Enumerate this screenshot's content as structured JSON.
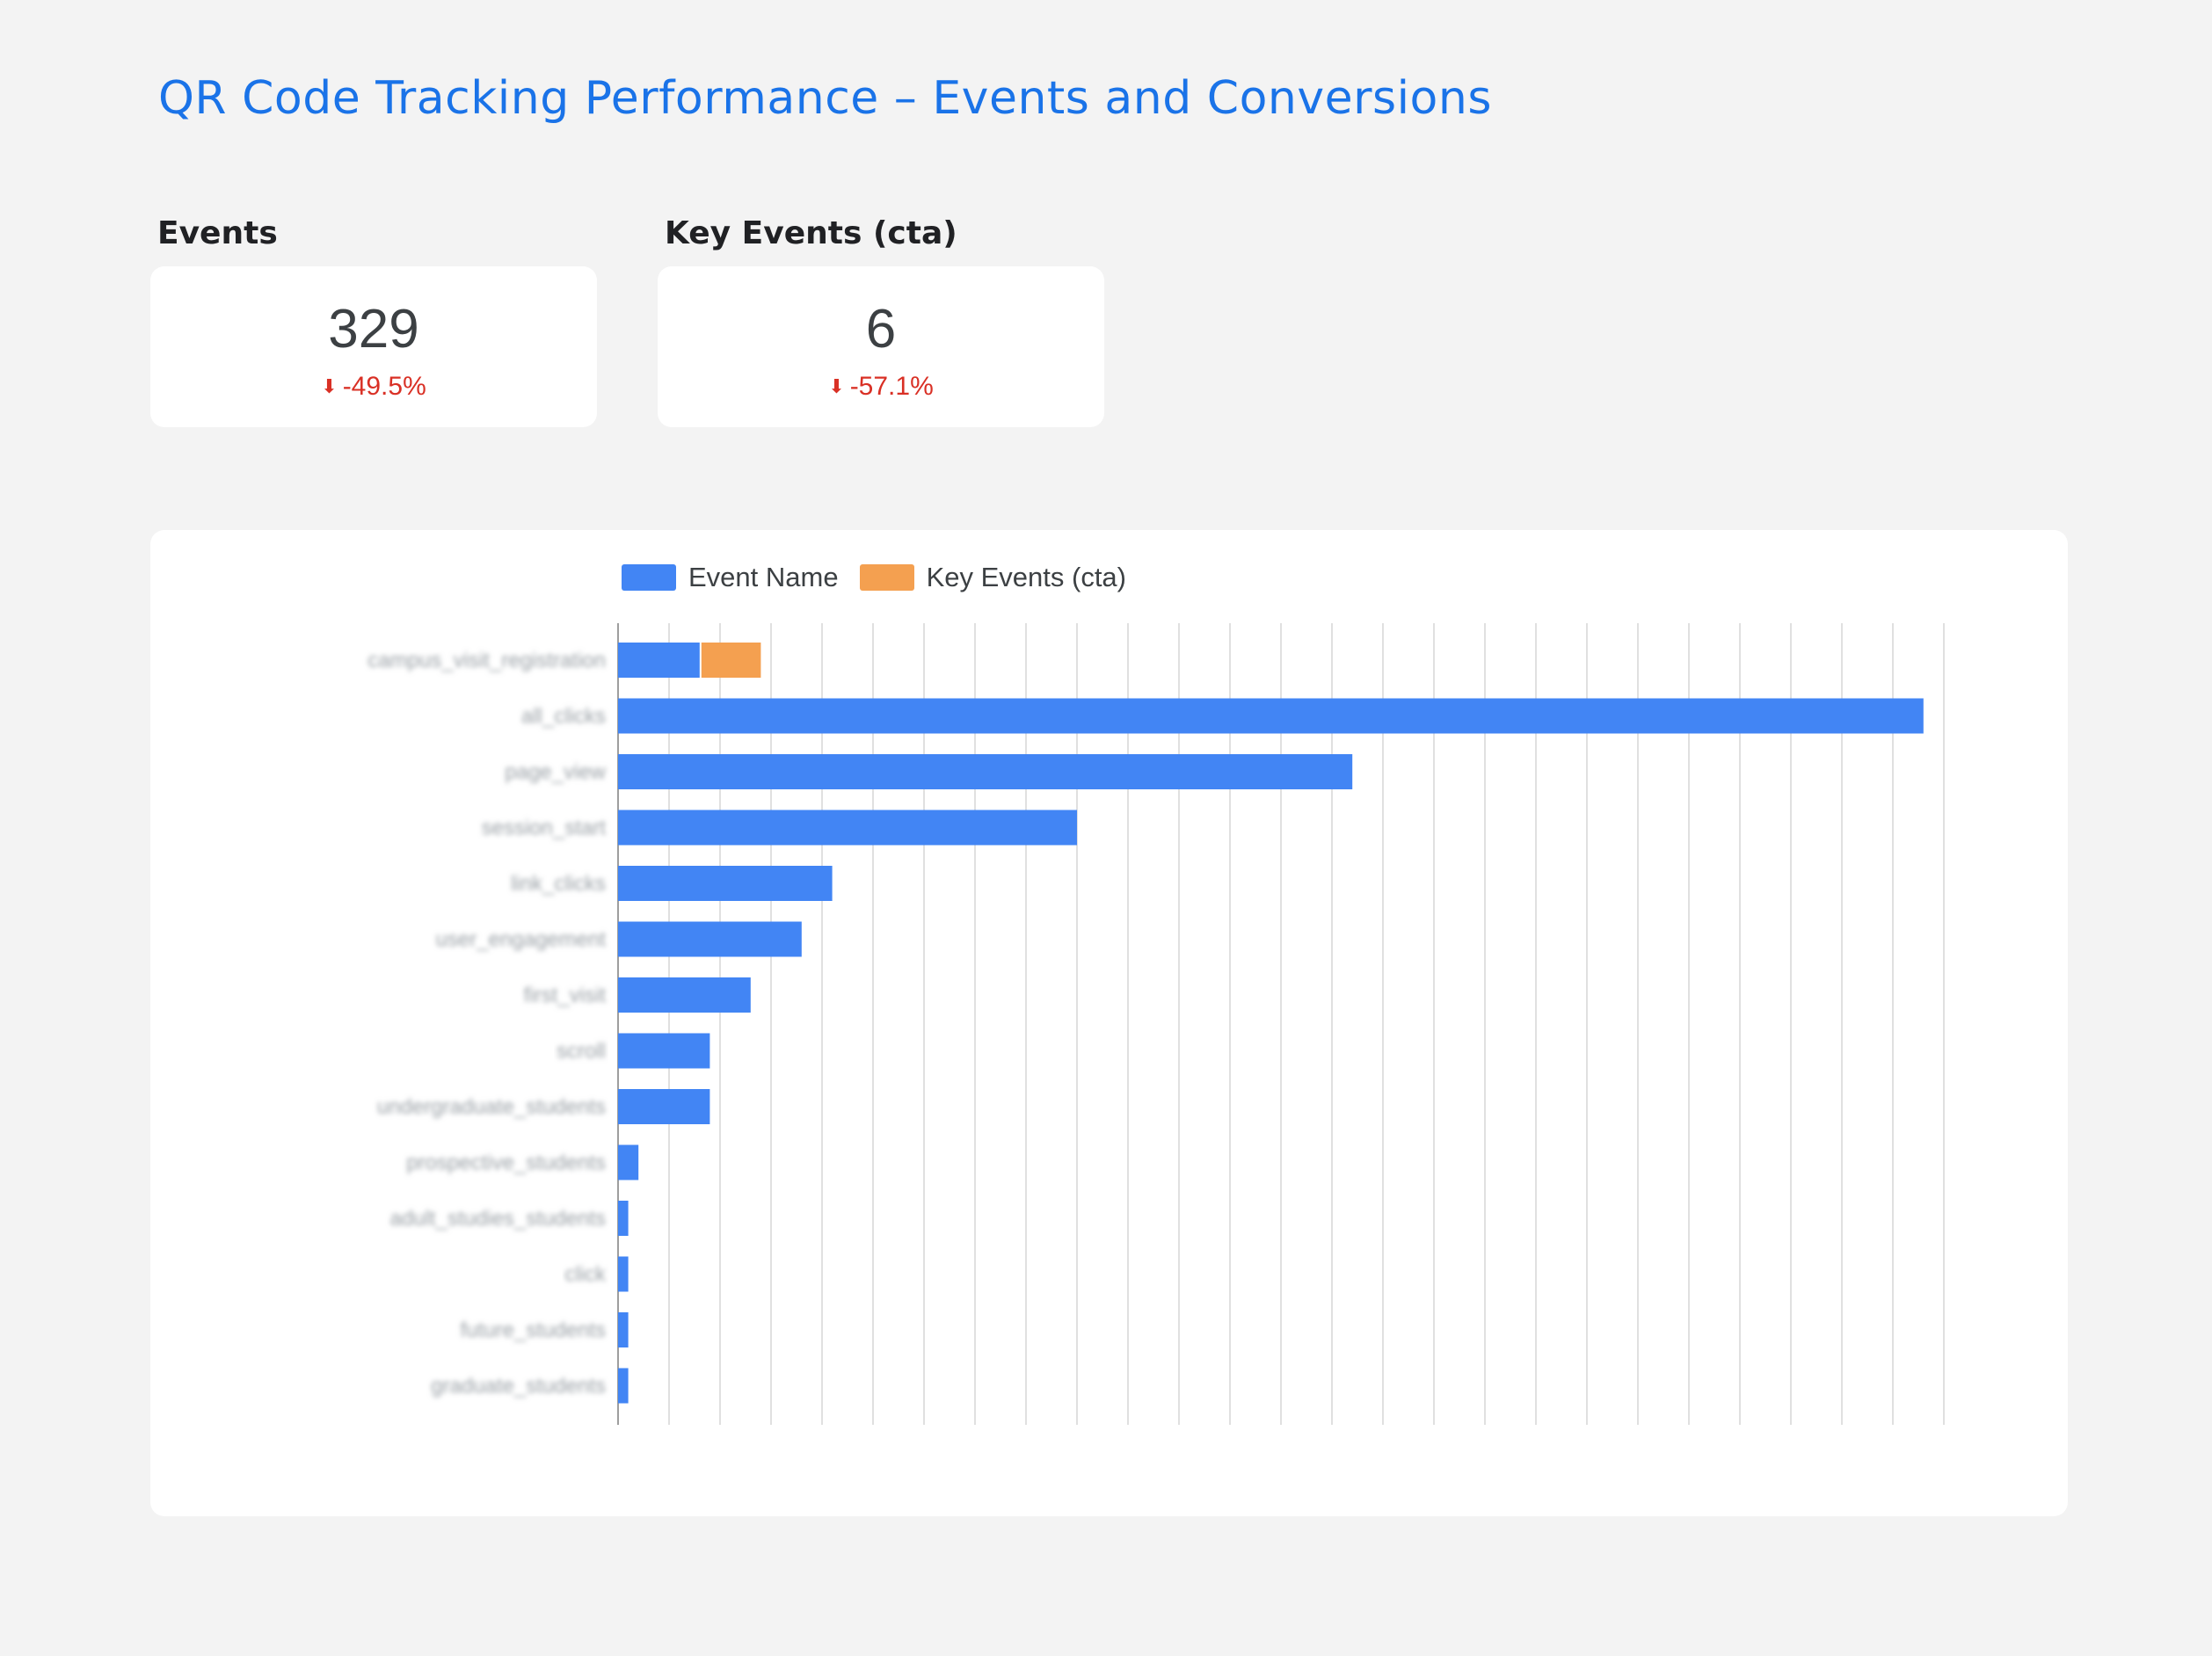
{
  "page": {
    "title": "QR Code Tracking Performance – Events and Conversions"
  },
  "kpis": [
    {
      "label": "Events",
      "value": "329",
      "delta": "-49.5%",
      "delta_icon": "arrow-down-icon",
      "delta_color": "#d93025"
    },
    {
      "label": "Key Events (cta)",
      "value": "6",
      "delta": "-57.1%",
      "delta_icon": "arrow-down-icon",
      "delta_color": "#d93025"
    }
  ],
  "colors": {
    "title": "#1a73e8",
    "series_event": "#4285f4",
    "series_key": "#f4a050",
    "negative": "#d93025"
  },
  "chart_data": {
    "type": "bar",
    "orientation": "horizontal",
    "stacked": true,
    "legend_position": "top",
    "grid": true,
    "categories_blurred": true,
    "categories": [
      "campus_visit_registration",
      "all_clicks",
      "page_view",
      "session_start",
      "link_clicks",
      "user_engagement",
      "first_visit",
      "scroll",
      "undergraduate_students",
      "prospective_students",
      "adult_studies_students",
      "click",
      "future_students",
      "graduate_students"
    ],
    "xlim": [
      0,
      130
    ],
    "x_gridline_step": 5,
    "series": [
      {
        "name": "Event Name",
        "color": "#4285f4",
        "values": [
          8,
          128,
          72,
          45,
          21,
          18,
          13,
          9,
          9,
          2,
          1,
          1,
          1,
          1
        ]
      },
      {
        "name": "Key Events (cta)",
        "color": "#f4a050",
        "values": [
          6,
          0,
          0,
          0,
          0,
          0,
          0,
          0,
          0,
          0,
          0,
          0,
          0,
          0
        ]
      }
    ]
  }
}
